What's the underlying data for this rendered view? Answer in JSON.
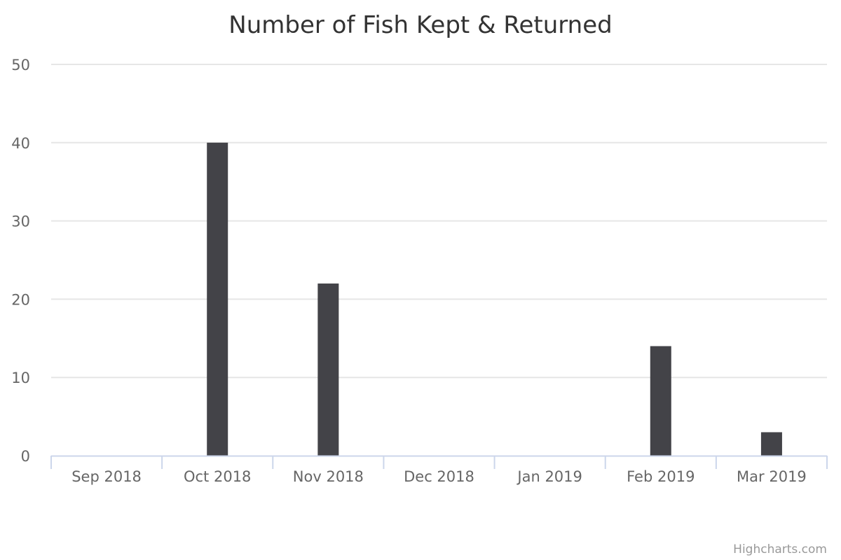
{
  "chart_data": {
    "type": "bar",
    "title": "Number of Fish Kept & Returned",
    "categories": [
      "Sep 2018",
      "Oct 2018",
      "Nov 2018",
      "Dec 2018",
      "Jan 2019",
      "Feb 2019",
      "Mar 2019"
    ],
    "values": [
      0,
      40,
      22,
      0,
      0,
      14,
      3
    ],
    "ylim": [
      0,
      50
    ],
    "yticks": [
      0,
      10,
      20,
      30,
      40,
      50
    ],
    "grid": true,
    "legend": "none",
    "bar_color": "#434348"
  },
  "credits": "Highcharts.com"
}
